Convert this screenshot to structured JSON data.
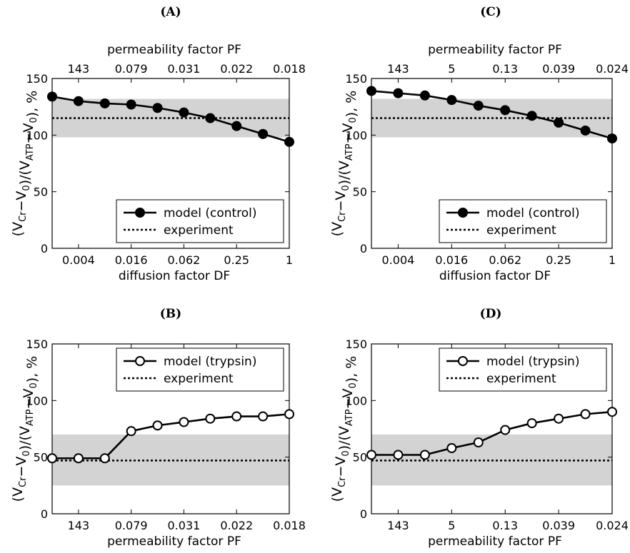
{
  "figure": {
    "y_label": {
      "main": "(V",
      "sub_cr": "Cr",
      "minus1": "−V",
      "sub_0a": "0",
      "mid": ")/(V",
      "sub_atp": "ATP",
      "minus2": "−V",
      "sub_0b": "0",
      "end": "), %"
    }
  },
  "colors": {
    "band": "#d3d3d3",
    "line": "#000000",
    "marker_filled": "#000000",
    "marker_open": "#ffffff"
  },
  "chart_data": [
    {
      "type": "line",
      "panel_label": "(A)",
      "top_axis_label": "permeability factor PF",
      "top_tick_labels": [
        "143",
        "0.079",
        "0.031",
        "0.022",
        "0.018"
      ],
      "bottom_axis_label": "diffusion factor DF",
      "bottom_tick_labels": [
        "0.004",
        "0.016",
        "0.062",
        "0.25",
        "1"
      ],
      "ylim": [
        0,
        150
      ],
      "y_ticks": [
        "0",
        "50",
        "100",
        "150"
      ],
      "experiment": {
        "value": 115,
        "band": [
          98,
          132
        ]
      },
      "series": [
        {
          "name": "model (control)",
          "marker": "filled",
          "x": [
            1,
            2,
            3,
            4,
            5,
            6,
            7,
            8,
            9,
            10
          ],
          "values": [
            134,
            130,
            128,
            127,
            124,
            120,
            115,
            108,
            101,
            94
          ]
        }
      ],
      "legend": {
        "entries": [
          "model (control)",
          "experiment"
        ],
        "position": "bottom-right"
      }
    },
    {
      "type": "line",
      "panel_label": "(C)",
      "top_axis_label": "permeability factor PF",
      "top_tick_labels": [
        "143",
        "5",
        "0.13",
        "0.039",
        "0.024"
      ],
      "bottom_axis_label": "diffusion factor DF",
      "bottom_tick_labels": [
        "0.004",
        "0.016",
        "0.062",
        "0.25",
        "1"
      ],
      "ylim": [
        0,
        150
      ],
      "y_ticks": [
        "0",
        "50",
        "100",
        "150"
      ],
      "experiment": {
        "value": 115,
        "band": [
          98,
          132
        ]
      },
      "series": [
        {
          "name": "model (control)",
          "marker": "filled",
          "x": [
            1,
            2,
            3,
            4,
            5,
            6,
            7,
            8,
            9,
            10
          ],
          "values": [
            139,
            137,
            135,
            131,
            126,
            122,
            117,
            111,
            104,
            97
          ]
        }
      ],
      "legend": {
        "entries": [
          "model (control)",
          "experiment"
        ],
        "position": "bottom-right"
      }
    },
    {
      "type": "line",
      "panel_label": "(B)",
      "bottom_axis_label": "permeability factor PF",
      "bottom_tick_labels": [
        "143",
        "0.079",
        "0.031",
        "0.022",
        "0.018"
      ],
      "ylim": [
        0,
        150
      ],
      "y_ticks": [
        "0",
        "50",
        "100",
        "150"
      ],
      "experiment": {
        "value": 47,
        "band": [
          25,
          70
        ]
      },
      "series": [
        {
          "name": "model (trypsin)",
          "marker": "open",
          "x": [
            1,
            2,
            3,
            4,
            5,
            6,
            7,
            8,
            9,
            10
          ],
          "values": [
            49,
            49,
            49,
            73,
            78,
            81,
            84,
            86,
            86,
            88
          ]
        }
      ],
      "legend": {
        "entries": [
          "model (trypsin)",
          "experiment"
        ],
        "position": "top-right"
      }
    },
    {
      "type": "line",
      "panel_label": "(D)",
      "bottom_axis_label": "permeability factor PF",
      "bottom_tick_labels": [
        "143",
        "5",
        "0.13",
        "0.039",
        "0.024"
      ],
      "ylim": [
        0,
        150
      ],
      "y_ticks": [
        "0",
        "50",
        "100",
        "150"
      ],
      "experiment": {
        "value": 47,
        "band": [
          25,
          70
        ]
      },
      "series": [
        {
          "name": "model (trypsin)",
          "marker": "open",
          "x": [
            1,
            2,
            3,
            4,
            5,
            6,
            7,
            8,
            9,
            10
          ],
          "values": [
            52,
            52,
            52,
            58,
            63,
            74,
            80,
            84,
            88,
            90
          ]
        }
      ],
      "legend": {
        "entries": [
          "model (trypsin)",
          "experiment"
        ],
        "position": "top-right"
      }
    }
  ]
}
